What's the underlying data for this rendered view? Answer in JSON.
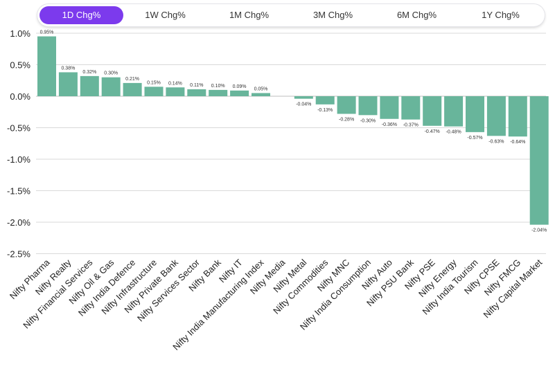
{
  "tabs": [
    {
      "label": "1D Chg%",
      "active": true
    },
    {
      "label": "1W Chg%",
      "active": false
    },
    {
      "label": "1M Chg%",
      "active": false
    },
    {
      "label": "3M Chg%",
      "active": false
    },
    {
      "label": "6M Chg%",
      "active": false
    },
    {
      "label": "1Y Chg%",
      "active": false
    }
  ],
  "colors": {
    "accent": "#7c3aed",
    "bar": "#68b59b",
    "grid": "#d9d9d9"
  },
  "chart_data": {
    "type": "bar",
    "categories": [
      "Nifty Pharma",
      "Nifty Realty",
      "Nifty Financial Services",
      "Nifty Oil & Gas",
      "Nifty India Defence",
      "Nifty Infrastructure",
      "Nifty Private Bank",
      "Nifty Services Sector",
      "Nifty Bank",
      "Nifty IT",
      "Nifty India Manufacturing Index",
      "Nifty Media",
      "Nifty Metal",
      "Nifty Commodities",
      "Nifty MNC",
      "Nifty India Consumption",
      "Nifty Auto",
      "Nifty PSU Bank",
      "Nifty PSE",
      "Nifty Energy",
      "Nifty India Tourism",
      "Nifty CPSE",
      "Nifty FMCG",
      "Nifty Capital Market"
    ],
    "values": [
      0.95,
      0.38,
      0.32,
      0.3,
      0.21,
      0.15,
      0.14,
      0.11,
      0.1,
      0.09,
      0.05,
      0.0,
      -0.04,
      -0.13,
      -0.28,
      -0.3,
      -0.36,
      -0.37,
      -0.47,
      -0.48,
      -0.57,
      -0.63,
      -0.64,
      -2.04
    ],
    "data_labels": [
      "0.95%",
      "0.38%",
      "0.32%",
      "0.30%",
      "0.21%",
      "0.15%",
      "0.14%",
      "0.11%",
      "0.10%",
      "0.09%",
      "0.05%",
      "",
      "-0.04%",
      "-0.13%",
      "-0.28%",
      "-0.30%",
      "-0.36%",
      "-0.37%",
      "-0.47%",
      "-0.48%",
      "-0.57%",
      "-0.63%",
      "-0.64%",
      "-2.04%"
    ],
    "yticks": [
      1.0,
      0.5,
      0.0,
      -0.5,
      -1.0,
      -1.5,
      -2.0,
      -2.5
    ],
    "ytick_labels": [
      "1.0%",
      "0.5%",
      "0.0%",
      "-0.5%",
      "-1.0%",
      "-1.5%",
      "-2.0%",
      "-2.5%"
    ],
    "ylim": [
      -2.5,
      1.0
    ],
    "grid": true,
    "title": "",
    "xlabel": "",
    "ylabel": ""
  }
}
